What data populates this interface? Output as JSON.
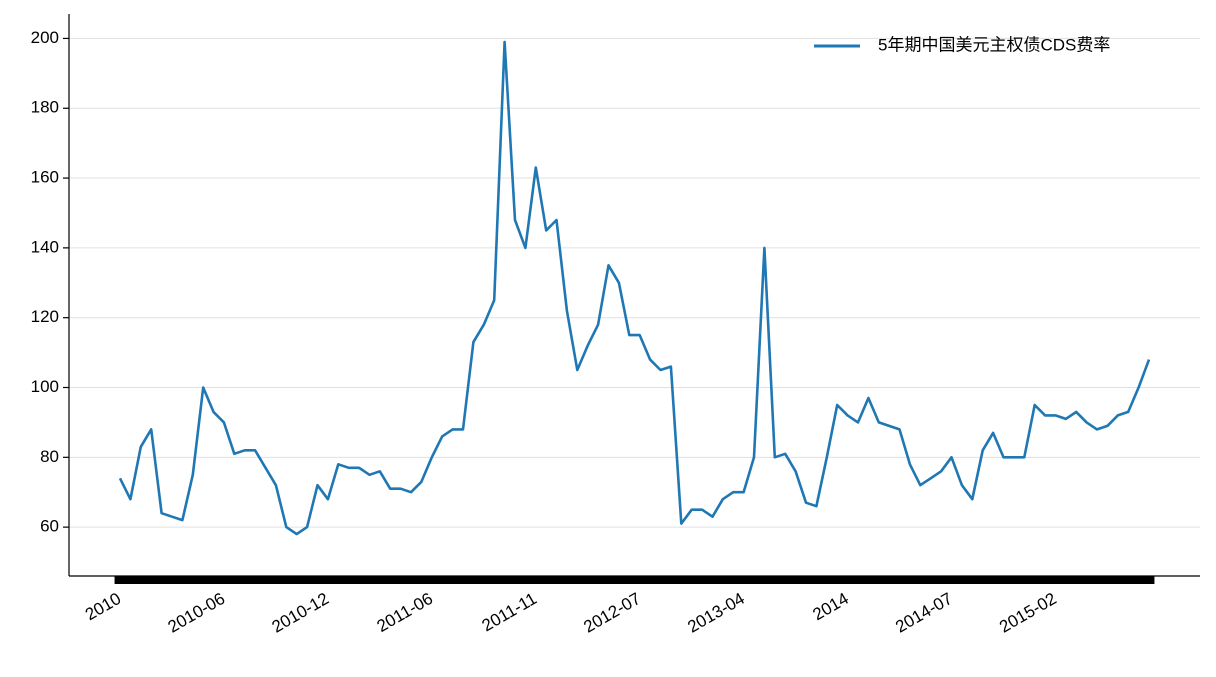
{
  "chart_data": {
    "type": "line",
    "categories": [
      "2010",
      null,
      null,
      null,
      null,
      null,
      null,
      null,
      null,
      null,
      "2010-06",
      null,
      null,
      null,
      null,
      null,
      null,
      null,
      null,
      null,
      "2010-12",
      null,
      null,
      null,
      null,
      null,
      null,
      null,
      null,
      null,
      "2011-06",
      null,
      null,
      null,
      null,
      null,
      null,
      null,
      null,
      null,
      "2011-11",
      null,
      null,
      null,
      null,
      null,
      null,
      null,
      null,
      null,
      "2012-07",
      null,
      null,
      null,
      null,
      null,
      null,
      null,
      null,
      null,
      "2013-04",
      null,
      null,
      null,
      null,
      null,
      null,
      null,
      null,
      null,
      "2014",
      null,
      null,
      null,
      null,
      null,
      null,
      null,
      null,
      null,
      "2014-07",
      null,
      null,
      null,
      null,
      null,
      null,
      null,
      null,
      null,
      "2015-02",
      null,
      null,
      null,
      null,
      null,
      null,
      null,
      null,
      null
    ],
    "series": [
      {
        "name": "5年期中国美元主权债CDS费率",
        "color": "#1f77b4",
        "values": [
          74,
          68,
          83,
          88,
          64,
          63,
          62,
          75,
          100,
          93,
          90,
          81,
          82,
          82,
          77,
          72,
          60,
          58,
          60,
          72,
          68,
          78,
          77,
          77,
          75,
          76,
          71,
          71,
          70,
          73,
          80,
          86,
          88,
          88,
          113,
          118,
          125,
          199,
          148,
          140,
          163,
          145,
          148,
          122,
          105,
          112,
          118,
          135,
          130,
          115,
          115,
          108,
          105,
          106,
          61,
          65,
          65,
          63,
          68,
          70,
          70,
          80,
          140,
          80,
          81,
          76,
          67,
          66,
          80,
          95,
          92,
          90,
          97,
          90,
          89,
          88,
          78,
          72,
          74,
          76,
          80,
          72,
          68,
          82,
          87,
          80,
          80,
          80,
          95,
          92,
          92,
          91,
          93,
          90,
          88,
          89,
          92,
          93,
          100,
          108
        ]
      }
    ],
    "ylim": [
      46,
      207
    ],
    "yticks": [
      60,
      80,
      100,
      120,
      140,
      160,
      180,
      200
    ],
    "grid": true,
    "legend": "upper right"
  }
}
